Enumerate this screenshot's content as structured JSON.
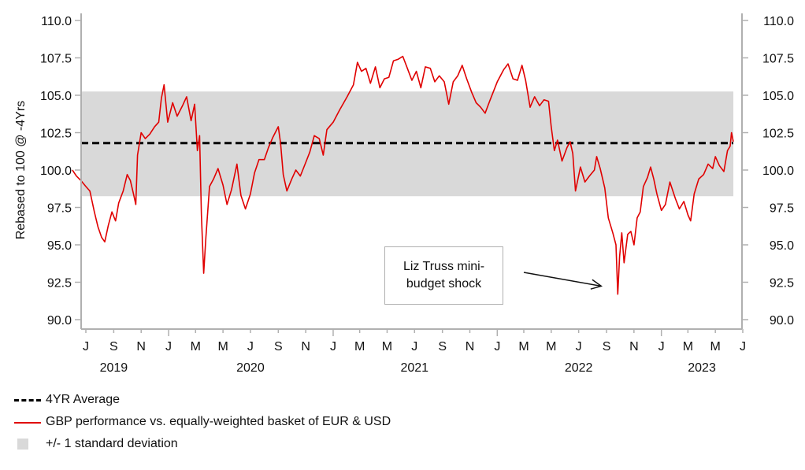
{
  "chart_data": {
    "type": "line",
    "title": "",
    "ylabel": "Rebased to 100 @ -4Yrs",
    "xlabel": "",
    "ylim": [
      90.0,
      110.0
    ],
    "yticks": [
      "90.0",
      "92.5",
      "95.0",
      "97.5",
      "100.0",
      "102.5",
      "105.0",
      "107.5",
      "110.0"
    ],
    "ytick_values": [
      90.0,
      92.5,
      95.0,
      97.5,
      100.0,
      102.5,
      105.0,
      107.5,
      110.0
    ],
    "x_range": [
      "2019-06-01",
      "2023-06-10"
    ],
    "x_month_ticks": [
      {
        "label": "J",
        "date": "2019-07"
      },
      {
        "label": "S",
        "date": "2019-09"
      },
      {
        "label": "N",
        "date": "2019-11"
      },
      {
        "label": "J",
        "date": "2020-01"
      },
      {
        "label": "M",
        "date": "2020-03"
      },
      {
        "label": "M",
        "date": "2020-05"
      },
      {
        "label": "J",
        "date": "2020-07"
      },
      {
        "label": "S",
        "date": "2020-09"
      },
      {
        "label": "N",
        "date": "2020-11"
      },
      {
        "label": "J",
        "date": "2021-01"
      },
      {
        "label": "M",
        "date": "2021-03"
      },
      {
        "label": "M",
        "date": "2021-05"
      },
      {
        "label": "J",
        "date": "2021-07"
      },
      {
        "label": "S",
        "date": "2021-09"
      },
      {
        "label": "N",
        "date": "2021-11"
      },
      {
        "label": "J",
        "date": "2022-01"
      },
      {
        "label": "M",
        "date": "2022-03"
      },
      {
        "label": "M",
        "date": "2022-05"
      },
      {
        "label": "J",
        "date": "2022-07"
      },
      {
        "label": "S",
        "date": "2022-09"
      },
      {
        "label": "N",
        "date": "2022-11"
      },
      {
        "label": "J",
        "date": "2023-01"
      },
      {
        "label": "M",
        "date": "2023-03"
      },
      {
        "label": "M",
        "date": "2023-05"
      },
      {
        "label": "J",
        "date": "2023-07"
      }
    ],
    "x_year_labels": [
      {
        "label": "2019",
        "date": "2019-09"
      },
      {
        "label": "2020",
        "date": "2020-07"
      },
      {
        "label": "2021",
        "date": "2021-07"
      },
      {
        "label": "2022",
        "date": "2022-07"
      },
      {
        "label": "2023",
        "date": "2023-04"
      }
    ],
    "grid": false,
    "series": [
      {
        "name": "GBP performance vs. equally-weighted basket of EUR & USD",
        "color": "#e00000",
        "style": "solid",
        "points": [
          [
            "2019-06-01",
            100.0
          ],
          [
            "2019-06-10",
            99.6
          ],
          [
            "2019-06-20",
            99.3
          ],
          [
            "2019-07-01",
            98.9
          ],
          [
            "2019-07-10",
            98.6
          ],
          [
            "2019-07-20",
            97.2
          ],
          [
            "2019-07-28",
            96.2
          ],
          [
            "2019-08-05",
            95.5
          ],
          [
            "2019-08-12",
            95.2
          ],
          [
            "2019-08-20",
            96.3
          ],
          [
            "2019-08-28",
            97.2
          ],
          [
            "2019-09-05",
            96.6
          ],
          [
            "2019-09-12",
            97.8
          ],
          [
            "2019-09-22",
            98.6
          ],
          [
            "2019-10-01",
            99.7
          ],
          [
            "2019-10-08",
            99.3
          ],
          [
            "2019-10-15",
            98.4
          ],
          [
            "2019-10-20",
            97.7
          ],
          [
            "2019-10-24",
            101.0
          ],
          [
            "2019-11-01",
            102.5
          ],
          [
            "2019-11-10",
            102.1
          ],
          [
            "2019-11-20",
            102.4
          ],
          [
            "2019-12-01",
            102.9
          ],
          [
            "2019-12-10",
            103.2
          ],
          [
            "2019-12-16",
            104.8
          ],
          [
            "2019-12-22",
            105.7
          ],
          [
            "2019-12-30",
            103.2
          ],
          [
            "2020-01-10",
            104.5
          ],
          [
            "2020-01-20",
            103.6
          ],
          [
            "2020-02-01",
            104.3
          ],
          [
            "2020-02-10",
            104.9
          ],
          [
            "2020-02-20",
            103.3
          ],
          [
            "2020-02-28",
            104.4
          ],
          [
            "2020-03-05",
            101.3
          ],
          [
            "2020-03-10",
            102.3
          ],
          [
            "2020-03-14",
            97.0
          ],
          [
            "2020-03-19",
            93.1
          ],
          [
            "2020-03-24",
            95.5
          ],
          [
            "2020-04-01",
            98.9
          ],
          [
            "2020-04-10",
            99.4
          ],
          [
            "2020-04-20",
            100.1
          ],
          [
            "2020-05-01",
            99.0
          ],
          [
            "2020-05-10",
            97.7
          ],
          [
            "2020-05-20",
            98.7
          ],
          [
            "2020-06-01",
            100.4
          ],
          [
            "2020-06-10",
            98.3
          ],
          [
            "2020-06-20",
            97.4
          ],
          [
            "2020-07-01",
            98.4
          ],
          [
            "2020-07-10",
            99.8
          ],
          [
            "2020-07-20",
            100.7
          ],
          [
            "2020-08-01",
            100.7
          ],
          [
            "2020-08-10",
            101.5
          ],
          [
            "2020-08-20",
            102.2
          ],
          [
            "2020-09-01",
            102.9
          ],
          [
            "2020-09-06",
            101.8
          ],
          [
            "2020-09-12",
            99.7
          ],
          [
            "2020-09-20",
            98.6
          ],
          [
            "2020-10-01",
            99.4
          ],
          [
            "2020-10-10",
            100.0
          ],
          [
            "2020-10-20",
            99.6
          ],
          [
            "2020-11-01",
            100.5
          ],
          [
            "2020-11-10",
            101.2
          ],
          [
            "2020-11-20",
            102.3
          ],
          [
            "2020-12-01",
            102.1
          ],
          [
            "2020-12-10",
            101.0
          ],
          [
            "2020-12-18",
            102.7
          ],
          [
            "2021-01-01",
            103.2
          ],
          [
            "2021-01-15",
            104.0
          ],
          [
            "2021-02-01",
            104.9
          ],
          [
            "2021-02-15",
            105.7
          ],
          [
            "2021-02-24",
            107.2
          ],
          [
            "2021-03-05",
            106.6
          ],
          [
            "2021-03-15",
            106.8
          ],
          [
            "2021-03-25",
            105.8
          ],
          [
            "2021-04-05",
            106.9
          ],
          [
            "2021-04-15",
            105.5
          ],
          [
            "2021-04-25",
            106.1
          ],
          [
            "2021-05-05",
            106.2
          ],
          [
            "2021-05-15",
            107.3
          ],
          [
            "2021-05-25",
            107.4
          ],
          [
            "2021-06-05",
            107.6
          ],
          [
            "2021-06-15",
            106.8
          ],
          [
            "2021-06-25",
            106.0
          ],
          [
            "2021-07-05",
            106.6
          ],
          [
            "2021-07-15",
            105.5
          ],
          [
            "2021-07-25",
            106.9
          ],
          [
            "2021-08-05",
            106.8
          ],
          [
            "2021-08-15",
            105.9
          ],
          [
            "2021-08-25",
            106.3
          ],
          [
            "2021-09-05",
            105.9
          ],
          [
            "2021-09-15",
            104.4
          ],
          [
            "2021-09-25",
            105.9
          ],
          [
            "2021-10-05",
            106.3
          ],
          [
            "2021-10-15",
            107.0
          ],
          [
            "2021-10-25",
            106.1
          ],
          [
            "2021-11-05",
            105.2
          ],
          [
            "2021-11-15",
            104.5
          ],
          [
            "2021-11-25",
            104.2
          ],
          [
            "2021-12-05",
            103.8
          ],
          [
            "2021-12-15",
            104.6
          ],
          [
            "2022-01-01",
            105.9
          ],
          [
            "2022-01-15",
            106.7
          ],
          [
            "2022-01-25",
            107.1
          ],
          [
            "2022-02-05",
            106.1
          ],
          [
            "2022-02-15",
            106.0
          ],
          [
            "2022-02-25",
            107.0
          ],
          [
            "2022-03-05",
            106.0
          ],
          [
            "2022-03-15",
            104.2
          ],
          [
            "2022-03-25",
            104.9
          ],
          [
            "2022-04-05",
            104.3
          ],
          [
            "2022-04-15",
            104.7
          ],
          [
            "2022-04-25",
            104.6
          ],
          [
            "2022-05-01",
            102.9
          ],
          [
            "2022-05-08",
            101.3
          ],
          [
            "2022-05-15",
            102.0
          ],
          [
            "2022-05-25",
            100.6
          ],
          [
            "2022-06-05",
            101.5
          ],
          [
            "2022-06-12",
            101.9
          ],
          [
            "2022-06-18",
            101.1
          ],
          [
            "2022-06-24",
            98.6
          ],
          [
            "2022-07-05",
            100.2
          ],
          [
            "2022-07-15",
            99.2
          ],
          [
            "2022-07-25",
            99.6
          ],
          [
            "2022-08-05",
            100.0
          ],
          [
            "2022-08-10",
            100.9
          ],
          [
            "2022-08-18",
            100.1
          ],
          [
            "2022-08-28",
            98.8
          ],
          [
            "2022-09-05",
            96.8
          ],
          [
            "2022-09-15",
            95.8
          ],
          [
            "2022-09-22",
            95.0
          ],
          [
            "2022-09-26",
            91.7
          ],
          [
            "2022-09-30",
            94.2
          ],
          [
            "2022-10-05",
            95.8
          ],
          [
            "2022-10-10",
            93.8
          ],
          [
            "2022-10-18",
            95.7
          ],
          [
            "2022-10-25",
            95.9
          ],
          [
            "2022-11-01",
            95.0
          ],
          [
            "2022-11-08",
            96.8
          ],
          [
            "2022-11-15",
            97.2
          ],
          [
            "2022-11-22",
            98.9
          ],
          [
            "2022-12-01",
            99.5
          ],
          [
            "2022-12-08",
            100.2
          ],
          [
            "2022-12-15",
            99.4
          ],
          [
            "2022-12-22",
            98.4
          ],
          [
            "2023-01-01",
            97.3
          ],
          [
            "2023-01-10",
            97.7
          ],
          [
            "2023-01-20",
            99.2
          ],
          [
            "2023-02-01",
            98.1
          ],
          [
            "2023-02-10",
            97.4
          ],
          [
            "2023-02-20",
            97.9
          ],
          [
            "2023-03-01",
            97.0
          ],
          [
            "2023-03-07",
            96.6
          ],
          [
            "2023-03-15",
            98.4
          ],
          [
            "2023-03-25",
            99.4
          ],
          [
            "2023-04-05",
            99.7
          ],
          [
            "2023-04-15",
            100.4
          ],
          [
            "2023-04-25",
            100.1
          ],
          [
            "2023-05-01",
            100.9
          ],
          [
            "2023-05-10",
            100.3
          ],
          [
            "2023-05-20",
            99.9
          ],
          [
            "2023-05-28",
            101.3
          ],
          [
            "2023-06-03",
            101.6
          ],
          [
            "2023-06-06",
            102.5
          ],
          [
            "2023-06-10",
            101.9
          ]
        ]
      },
      {
        "name": "4YR Average",
        "color": "#000000",
        "style": "dashed",
        "value": 101.8
      }
    ],
    "band": {
      "name": "+/- 1 standard deviation",
      "color": "#d9d9d9",
      "lower": 98.25,
      "upper": 105.25
    },
    "annotations": [
      {
        "text_lines": [
          "Liz Truss mini-",
          "budget shock"
        ],
        "arrow_target": [
          "2022-09-26",
          92.4
        ]
      }
    ],
    "legend": {
      "placement": "bottom-left",
      "entries": [
        {
          "label": "4YR Average",
          "swatch": "dashed-black"
        },
        {
          "label": "GBP performance vs. equally-weighted basket of EUR & USD",
          "swatch": "solid-red"
        },
        {
          "label": "+/- 1 standard deviation",
          "swatch": "grey-box"
        }
      ]
    }
  }
}
